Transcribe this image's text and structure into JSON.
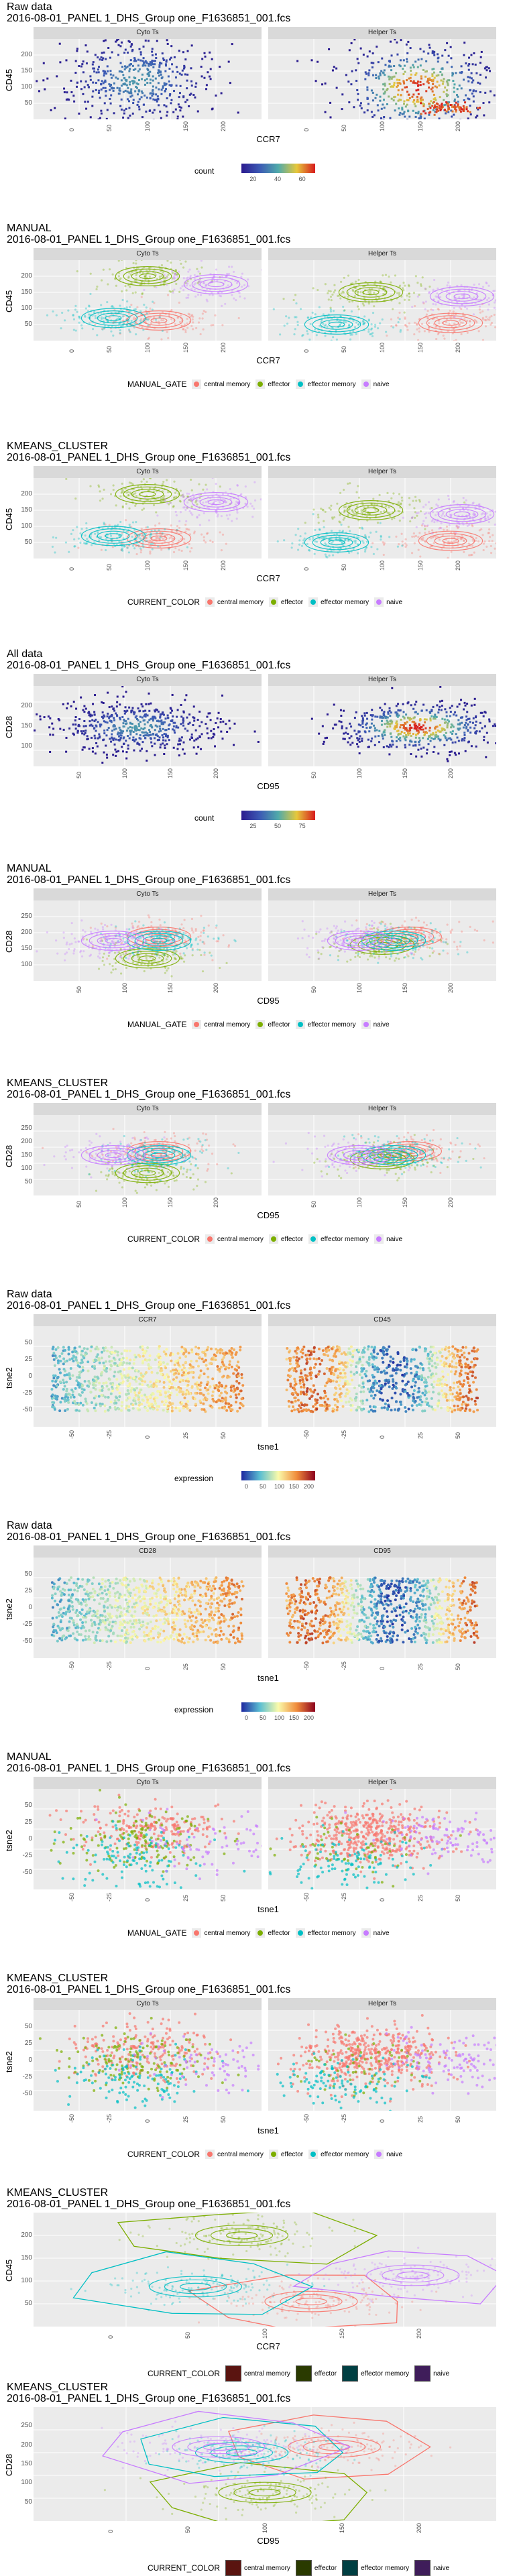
{
  "colors": {
    "central_memory": "#F8766D",
    "effector": "#7CAE00",
    "effector_memory": "#00BFC4",
    "naive": "#C77CFF",
    "panel_bg": "#EBEBEB",
    "strip_bg": "#D9D9D9",
    "density_low": "#2B1B8F",
    "density_high": "#D7191C"
  },
  "sections": [
    {
      "id": "s1",
      "kind": "density",
      "title1": "Raw data",
      "title2": "2016-08-01_PANEL 1_DHS_Group one_F1636851_001.fcs",
      "facets": [
        "Cyto Ts",
        "Helper Ts"
      ],
      "xlabel": "CCR7",
      "ylabel": "CD45",
      "xticks": [
        "0",
        "50",
        "100",
        "150",
        "200"
      ],
      "yticks": [
        "50",
        "100",
        "150",
        "200"
      ],
      "legend_title": "count",
      "legend_ticks": [
        "20",
        "40",
        "60"
      ]
    },
    {
      "id": "s2",
      "kind": "groups",
      "title1": "MANUAL",
      "title2": "2016-08-01_PANEL 1_DHS_Group one_F1636851_001.fcs",
      "facets": [
        "Cyto Ts",
        "Helper Ts"
      ],
      "xlabel": "CCR7",
      "ylabel": "CD45",
      "xticks": [
        "0",
        "50",
        "100",
        "150",
        "200"
      ],
      "yticks": [
        "50",
        "100",
        "150",
        "200"
      ],
      "legend_title": "MANUAL_GATE",
      "legend_items": [
        "central memory",
        "effector",
        "effector memory",
        "naive"
      ]
    },
    {
      "id": "s3",
      "kind": "groups",
      "title1": "KMEANS_CLUSTER",
      "title2": "2016-08-01_PANEL 1_DHS_Group one_F1636851_001.fcs",
      "facets": [
        "Cyto Ts",
        "Helper Ts"
      ],
      "xlabel": "CCR7",
      "ylabel": "CD45",
      "xticks": [
        "0",
        "50",
        "100",
        "150",
        "200"
      ],
      "yticks": [
        "50",
        "100",
        "150",
        "200"
      ],
      "legend_title": "CURRENT_COLOR",
      "legend_items": [
        "central memory",
        "effector",
        "effector memory",
        "naive"
      ]
    },
    {
      "id": "s4",
      "kind": "density",
      "title1": "All data",
      "title2": "2016-08-01_PANEL 1_DHS_Group one_F1636851_001.fcs",
      "facets": [
        "Cyto Ts",
        "Helper Ts"
      ],
      "xlabel": "CD95",
      "ylabel": "CD28",
      "xticks": [
        "50",
        "100",
        "150",
        "200"
      ],
      "yticks": [
        "100",
        "150",
        "200"
      ],
      "legend_title": "count",
      "legend_ticks": [
        "25",
        "50",
        "75"
      ]
    },
    {
      "id": "s5",
      "kind": "groups",
      "title1": "MANUAL",
      "title2": "2016-08-01_PANEL 1_DHS_Group one_F1636851_001.fcs",
      "facets": [
        "Cyto Ts",
        "Helper Ts"
      ],
      "xlabel": "CD95",
      "ylabel": "CD28",
      "xticks": [
        "50",
        "100",
        "150",
        "200"
      ],
      "yticks": [
        "100",
        "150",
        "200",
        "250"
      ],
      "legend_title": "MANUAL_GATE",
      "legend_items": [
        "central memory",
        "effector",
        "effector memory",
        "naive"
      ]
    },
    {
      "id": "s6",
      "kind": "groups",
      "title1": "KMEANS_CLUSTER",
      "title2": "2016-08-01_PANEL 1_DHS_Group one_F1636851_001.fcs",
      "facets": [
        "Cyto Ts",
        "Helper Ts"
      ],
      "xlabel": "CD95",
      "ylabel": "CD28",
      "xticks": [
        "50",
        "100",
        "150",
        "200"
      ],
      "yticks": [
        "50",
        "100",
        "150",
        "200",
        "250"
      ],
      "legend_title": "CURRENT_COLOR",
      "legend_items": [
        "central memory",
        "effector",
        "effector memory",
        "naive"
      ]
    },
    {
      "id": "s7",
      "kind": "tsne_expr",
      "title1": "Raw data",
      "title2": "2016-08-01_PANEL 1_DHS_Group one_F1636851_001.fcs",
      "facets": [
        "CCR7",
        "CD45"
      ],
      "xlabel": "tsne1",
      "ylabel": "tsne2",
      "xticks": [
        "-50",
        "-25",
        "0",
        "25",
        "50"
      ],
      "yticks": [
        "-50",
        "-25",
        "0",
        "25",
        "50"
      ],
      "legend_title": "expression",
      "legend_ticks": [
        "0",
        "50",
        "100",
        "150",
        "200"
      ]
    },
    {
      "id": "s8",
      "kind": "tsne_expr",
      "title1": "Raw data",
      "title2": "2016-08-01_PANEL 1_DHS_Group one_F1636851_001.fcs",
      "facets": [
        "CD28",
        "CD95"
      ],
      "xlabel": "tsne1",
      "ylabel": "tsne2",
      "xticks": [
        "-50",
        "-25",
        "0",
        "25",
        "50"
      ],
      "yticks": [
        "-50",
        "-25",
        "0",
        "25",
        "50"
      ],
      "legend_title": "expression",
      "legend_ticks": [
        "0",
        "50",
        "100",
        "150",
        "200"
      ]
    },
    {
      "id": "s9",
      "kind": "tsne_groups",
      "title1": "MANUAL",
      "title2": "2016-08-01_PANEL 1_DHS_Group one_F1636851_001.fcs",
      "facets": [
        "Cyto Ts",
        "Helper Ts"
      ],
      "xlabel": "tsne1",
      "ylabel": "tsne2",
      "xticks": [
        "-50",
        "-25",
        "0",
        "25",
        "50"
      ],
      "yticks": [
        "-50",
        "-25",
        "0",
        "25",
        "50"
      ],
      "legend_title": "MANUAL_GATE",
      "legend_items": [
        "central memory",
        "effector",
        "effector memory",
        "naive"
      ]
    },
    {
      "id": "s10",
      "kind": "tsne_groups",
      "title1": "KMEANS_CLUSTER",
      "title2": "2016-08-01_PANEL 1_DHS_Group one_F1636851_001.fcs",
      "facets": [
        "Cyto Ts",
        "Helper Ts"
      ],
      "xlabel": "tsne1",
      "ylabel": "tsne2",
      "xticks": [
        "-50",
        "-25",
        "0",
        "25",
        "50"
      ],
      "yticks": [
        "-50",
        "-25",
        "0",
        "25",
        "50"
      ],
      "legend_title": "CURRENT_COLOR",
      "legend_items": [
        "central memory",
        "effector",
        "effector memory",
        "naive"
      ]
    },
    {
      "id": "s11",
      "kind": "hulls",
      "title1": "KMEANS_CLUSTER",
      "title2": "2016-08-01_PANEL 1_DHS_Group one_F1636851_001.fcs",
      "xlabel": "CCR7",
      "ylabel": "CD45",
      "xticks": [
        "0",
        "50",
        "100",
        "150",
        "200"
      ],
      "yticks": [
        "50",
        "100",
        "150",
        "200"
      ],
      "legend_title": "CURRENT_COLOR",
      "legend_items": [
        "central memory",
        "effector",
        "effector memory",
        "naive"
      ]
    },
    {
      "id": "s12",
      "kind": "hulls",
      "title1": "KMEANS_CLUSTER",
      "title2": "2016-08-01_PANEL 1_DHS_Group one_F1636851_001.fcs",
      "xlabel": "CD95",
      "ylabel": "CD28",
      "xticks": [
        "0",
        "50",
        "100",
        "150",
        "200"
      ],
      "yticks": [
        "50",
        "100",
        "150",
        "200",
        "250"
      ],
      "legend_title": "CURRENT_COLOR",
      "legend_items": [
        "central memory",
        "effector",
        "effector memory",
        "naive"
      ]
    }
  ],
  "chart_data": [
    {
      "type": "heatmap",
      "title": "Raw data",
      "subtitle": "2016-08-01_PANEL 1_DHS_Group one_F1636851_001.fcs",
      "xlabel": "CCR7",
      "ylabel": "CD45",
      "facets": [
        "Cyto Ts",
        "Helper Ts"
      ],
      "xlim": [
        0,
        210
      ],
      "ylim": [
        30,
        250
      ],
      "legend": "count",
      "legend_range": [
        0,
        70
      ]
    },
    {
      "type": "scatter",
      "title": "MANUAL",
      "xlabel": "CCR7",
      "ylabel": "CD45",
      "facets": [
        "Cyto Ts",
        "Helper Ts"
      ],
      "series": [
        {
          "name": "central memory"
        },
        {
          "name": "effector"
        },
        {
          "name": "effector memory"
        },
        {
          "name": "naive"
        }
      ]
    },
    {
      "type": "scatter",
      "title": "KMEANS_CLUSTER",
      "xlabel": "CCR7",
      "ylabel": "CD45",
      "facets": [
        "Cyto Ts",
        "Helper Ts"
      ],
      "series": [
        {
          "name": "central memory"
        },
        {
          "name": "effector"
        },
        {
          "name": "effector memory"
        },
        {
          "name": "naive"
        }
      ]
    },
    {
      "type": "heatmap",
      "title": "All data",
      "xlabel": "CD95",
      "ylabel": "CD28",
      "facets": [
        "Cyto Ts",
        "Helper Ts"
      ],
      "legend": "count",
      "legend_range": [
        0,
        90
      ]
    },
    {
      "type": "scatter",
      "title": "MANUAL",
      "xlabel": "CD95",
      "ylabel": "CD28",
      "facets": [
        "Cyto Ts",
        "Helper Ts"
      ]
    },
    {
      "type": "scatter",
      "title": "KMEANS_CLUSTER",
      "xlabel": "CD95",
      "ylabel": "CD28",
      "facets": [
        "Cyto Ts",
        "Helper Ts"
      ]
    },
    {
      "type": "scatter",
      "title": "Raw data",
      "xlabel": "tsne1",
      "ylabel": "tsne2",
      "facets": [
        "CCR7",
        "CD45"
      ],
      "legend": "expression",
      "legend_range": [
        0,
        220
      ]
    },
    {
      "type": "scatter",
      "title": "Raw data",
      "xlabel": "tsne1",
      "ylabel": "tsne2",
      "facets": [
        "CD28",
        "CD95"
      ],
      "legend": "expression",
      "legend_range": [
        0,
        220
      ]
    },
    {
      "type": "scatter",
      "title": "MANUAL",
      "xlabel": "tsne1",
      "ylabel": "tsne2",
      "facets": [
        "Cyto Ts",
        "Helper Ts"
      ]
    },
    {
      "type": "scatter",
      "title": "KMEANS_CLUSTER",
      "xlabel": "tsne1",
      "ylabel": "tsne2",
      "facets": [
        "Cyto Ts",
        "Helper Ts"
      ]
    },
    {
      "type": "scatter",
      "title": "KMEANS_CLUSTER",
      "xlabel": "CCR7",
      "ylabel": "CD45"
    },
    {
      "type": "scatter",
      "title": "KMEANS_CLUSTER",
      "xlabel": "CD95",
      "ylabel": "CD28"
    }
  ]
}
